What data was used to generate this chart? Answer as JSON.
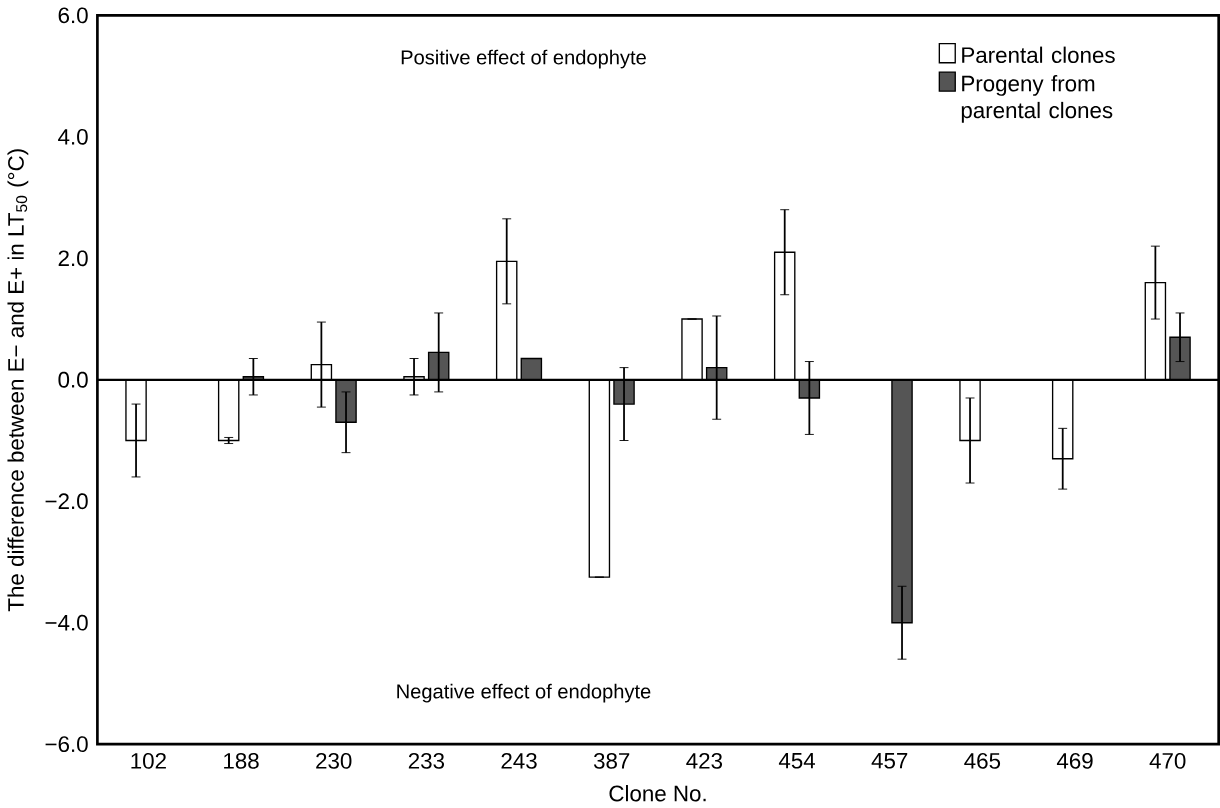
{
  "chart_data": {
    "type": "bar",
    "xlabel": "Clone No.",
    "ylabel": "The difference between E− and E+ in LT$_{50}$ (°C)",
    "categories": [
      "102",
      "188",
      "230",
      "233",
      "243",
      "387",
      "423",
      "454",
      "457",
      "465",
      "469",
      "470"
    ],
    "series": [
      {
        "name": "Parental clones",
        "color": "#ffffff",
        "values": [
          -1.0,
          -1.0,
          0.25,
          0.05,
          1.95,
          -3.25,
          1.0,
          2.1,
          null,
          -1.0,
          -1.3,
          1.6
        ],
        "errors": [
          0.6,
          0.05,
          0.7,
          0.3,
          0.7,
          null,
          null,
          0.7,
          null,
          0.7,
          0.5,
          0.6
        ]
      },
      {
        "name": "Progeny from parental clones",
        "color": "#555555",
        "values": [
          null,
          0.05,
          -0.7,
          0.45,
          0.35,
          -0.4,
          0.2,
          -0.3,
          -4.0,
          null,
          null,
          0.7
        ],
        "errors": [
          null,
          0.3,
          0.5,
          0.65,
          null,
          0.6,
          0.85,
          0.6,
          0.6,
          null,
          null,
          0.4
        ]
      }
    ],
    "ylim": [
      -6,
      6
    ],
    "yticks": [
      {
        "value": -6,
        "label": "−6.0"
      },
      {
        "value": -4,
        "label": "−4.0"
      },
      {
        "value": -2,
        "label": "−2.0"
      },
      {
        "value": 0,
        "label": "0.0"
      },
      {
        "value": 2,
        "label": "2.0"
      },
      {
        "value": 4,
        "label": "4.0"
      },
      {
        "value": 6,
        "label": "6.0"
      }
    ],
    "ref_lines": [
      {
        "axis": "y",
        "value": 0,
        "color": "#000000"
      }
    ],
    "annotations": [
      "Positive effect of endophyte",
      "Negative effect of endophyte"
    ],
    "legend": "top right",
    "grid": false
  }
}
